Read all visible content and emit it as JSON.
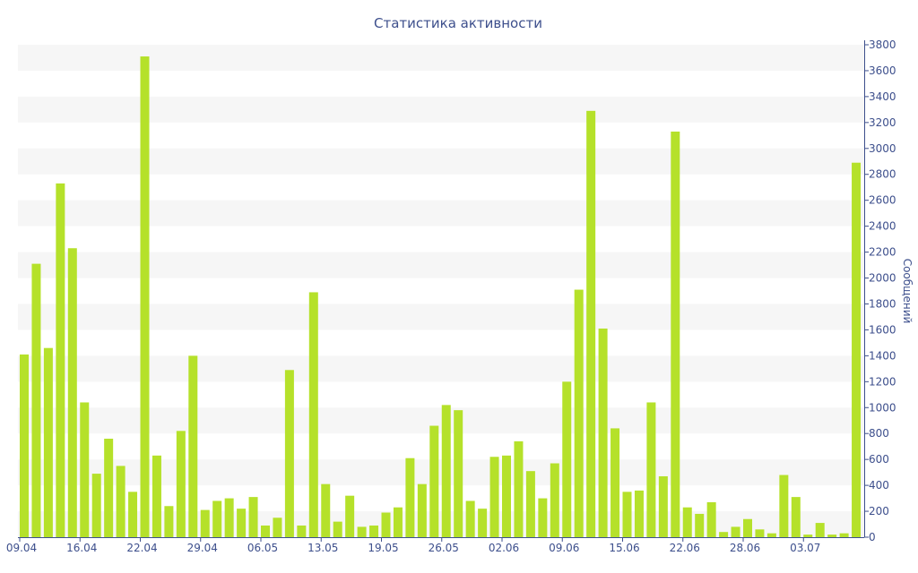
{
  "chart_data": {
    "type": "bar",
    "title": "Статистика активности",
    "ylabel": "Сообщений",
    "xlabel": "",
    "ylim": [
      0,
      3800
    ],
    "y_ticks": [
      0,
      200,
      400,
      600,
      800,
      1000,
      1200,
      1400,
      1600,
      1800,
      2000,
      2200,
      2400,
      2600,
      2800,
      3000,
      3200,
      3400,
      3600,
      3800
    ],
    "y_axis_position": "right",
    "grid": "horizontal alternating bands",
    "legend": "none",
    "bar_color": "#b5e12a",
    "axis_color": "#3d4f8c",
    "x_ticks": [
      {
        "label": "09.04",
        "index": 0
      },
      {
        "label": "16.04",
        "index": 5
      },
      {
        "label": "22.04",
        "index": 10
      },
      {
        "label": "29.04",
        "index": 15
      },
      {
        "label": "06.05",
        "index": 20
      },
      {
        "label": "13.05",
        "index": 25
      },
      {
        "label": "19.05",
        "index": 30
      },
      {
        "label": "26.05",
        "index": 35
      },
      {
        "label": "02.06",
        "index": 40
      },
      {
        "label": "09.06",
        "index": 45
      },
      {
        "label": "15.06",
        "index": 50
      },
      {
        "label": "22.06",
        "index": 55
      },
      {
        "label": "28.06",
        "index": 60
      },
      {
        "label": "03.07",
        "index": 65
      }
    ],
    "values": [
      1410,
      2110,
      1460,
      2730,
      2230,
      1040,
      490,
      760,
      550,
      350,
      3710,
      630,
      240,
      820,
      1400,
      210,
      280,
      300,
      220,
      310,
      90,
      150,
      1290,
      90,
      1890,
      410,
      120,
      320,
      80,
      90,
      190,
      230,
      610,
      410,
      860,
      1020,
      980,
      280,
      220,
      620,
      630,
      740,
      510,
      300,
      570,
      1200,
      1910,
      3290,
      1610,
      840,
      350,
      360,
      1040,
      470,
      3130,
      230,
      180,
      270,
      40,
      80,
      140,
      60,
      30,
      480,
      310,
      20,
      110,
      20,
      30,
      2890
    ]
  }
}
